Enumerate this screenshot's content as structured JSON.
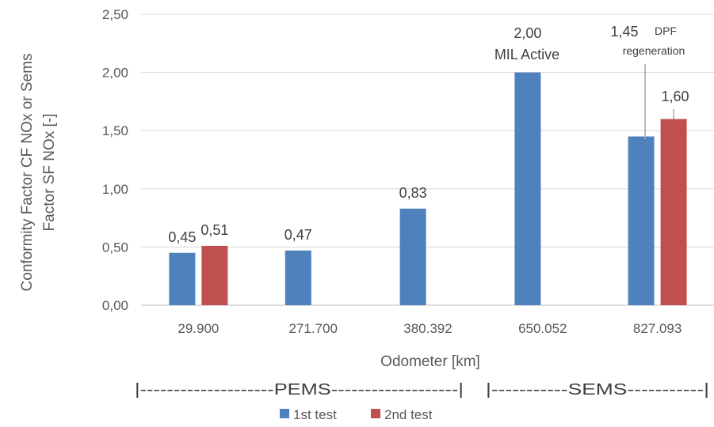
{
  "chart_data": {
    "type": "bar",
    "ylabel_lines": [
      "Conformity Factor CF NOx or Sems",
      "Factor SF NOx [-]"
    ],
    "xlabel": "Odometer [km]",
    "categories": [
      "29.900",
      "271.700",
      "380.392",
      "650.052",
      "827.093"
    ],
    "series": [
      {
        "name": "1st test",
        "color": "#4f81bd",
        "values": [
          0.45,
          0.47,
          0.83,
          2.0,
          1.45
        ]
      },
      {
        "name": "2nd test",
        "color": "#c0504d",
        "values": [
          0.51,
          null,
          null,
          null,
          1.6
        ]
      }
    ],
    "value_labels": [
      [
        "0,45",
        "0,47",
        "0,83",
        "2,00",
        "1,45"
      ],
      [
        "0,51",
        null,
        null,
        null,
        "1,60"
      ]
    ],
    "annotations": [
      {
        "category": "650.052",
        "text": "MIL Active"
      },
      {
        "category": "827.093",
        "text_lines": [
          "DPF",
          "regeneration"
        ]
      }
    ],
    "ylim": [
      0,
      2.5
    ],
    "yticks": [
      0,
      0.5,
      1.0,
      1.5,
      2.0,
      2.5
    ],
    "ytick_labels": [
      "0,00",
      "0,50",
      "1,00",
      "1,50",
      "2,00",
      "2,50"
    ],
    "grid": true,
    "legend_position": "bottom",
    "ranges": [
      {
        "label": "|--------------------PEMS-------------------|"
      },
      {
        "label": "|-----------SEMS-----------|"
      }
    ]
  }
}
